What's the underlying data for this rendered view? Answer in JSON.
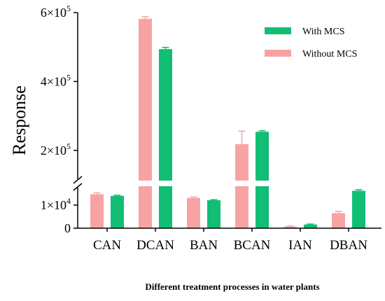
{
  "chart_data": {
    "type": "bar",
    "categories": [
      "CAN",
      "DCAN",
      "BAN",
      "BCAN",
      "IAN",
      "DBAN"
    ],
    "series": [
      {
        "name": "Without MCS",
        "color": "#F8A3A3",
        "values": [
          14700,
          582000,
          13100,
          218000,
          700,
          6500
        ],
        "errors": [
          600,
          6000,
          400,
          38000,
          250,
          800
        ]
      },
      {
        "name": "With MCS",
        "color": "#12BE74",
        "values": [
          14000,
          494000,
          12100,
          254000,
          1600,
          16200
        ],
        "errors": [
          300,
          5000,
          250,
          3000,
          200,
          450
        ]
      }
    ],
    "ylabel": "Response",
    "xlabel": "Different treatment processes in water plants",
    "axis_break": {
      "lower_range": [
        0,
        20000
      ],
      "upper_range": [
        100000,
        600000
      ],
      "lower_ticks": [
        {
          "value": 0,
          "label": "0"
        },
        {
          "value": 10000,
          "label": "1×10",
          "exp": "4"
        }
      ],
      "upper_ticks": [
        {
          "value": 200000,
          "label": "2×10",
          "exp": "5"
        },
        {
          "value": 400000,
          "label": "4×10",
          "exp": "5"
        },
        {
          "value": 600000,
          "label": "6×10",
          "exp": "5"
        }
      ]
    },
    "legend_position": "top-right",
    "grid": false
  }
}
